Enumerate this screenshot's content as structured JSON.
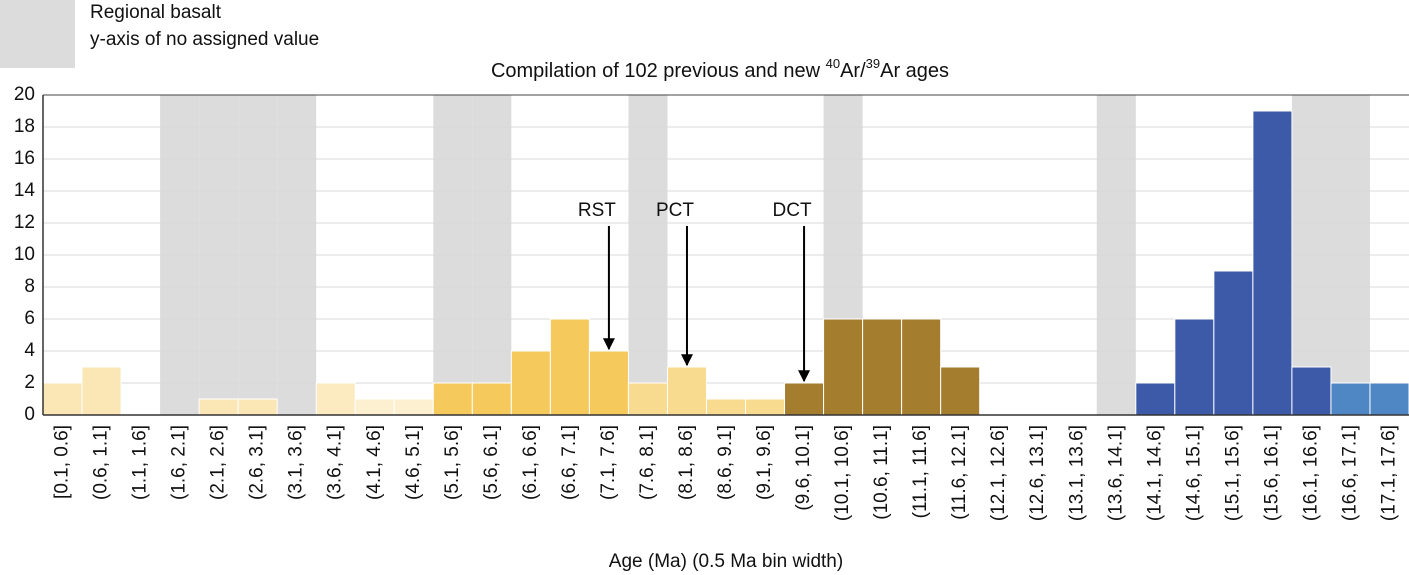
{
  "chart_data": {
    "type": "bar",
    "title": [
      "Compilation of 102 previous and new ",
      "40",
      "Ar/",
      "39",
      "Ar ages"
    ],
    "title_superscripts": [
      1,
      3
    ],
    "x_label": "Age (Ma) (0.5 Ma bin width)",
    "legend": [
      "Regional basalt",
      "y-axis of no assigned value"
    ],
    "shade_color": "#dcdcdc",
    "shaded_categories": [
      3,
      4,
      5,
      6,
      10,
      11,
      15,
      20,
      27,
      32,
      33
    ],
    "categories": [
      "[0.1, 0.6]",
      "(0.6, 1.1]",
      "(1.1, 1.6]",
      "(1.6, 2.1]",
      "(2.1, 2.6]",
      "(2.6, 3.1]",
      "(3.1, 3.6]",
      "(3.6, 4.1]",
      "(4.1, 4.6]",
      "(4.6, 5.1]",
      "(5.1, 5.6]",
      "(5.6, 6.1]",
      "(6.1, 6.6]",
      "(6.6, 7.1]",
      "(7.1, 7.6]",
      "(7.6, 8.1]",
      "(8.1, 8.6]",
      "(8.6, 9.1]",
      "(9.1, 9.6]",
      "(9.6, 10.1]",
      "(10.1, 10.6]",
      "(10.6, 11.1]",
      "(11.1, 11.6]",
      "(11.6, 12.1]",
      "(12.1, 12.6]",
      "(12.6, 13.1]",
      "(13.1, 13.6]",
      "(13.6, 14.1]",
      "(14.1, 14.6]",
      "(14.6, 15.1]",
      "(15.1, 15.6]",
      "(15.6, 16.1]",
      "(16.1, 16.6]",
      "(16.6, 17.1]",
      "(17.1, 17.6]"
    ],
    "values": [
      2,
      3,
      0,
      0,
      1,
      1,
      0,
      2,
      1,
      1,
      2,
      2,
      4,
      6,
      4,
      2,
      3,
      1,
      1,
      2,
      6,
      6,
      6,
      3,
      0,
      0,
      0,
      0,
      2,
      6,
      9,
      19,
      3,
      2,
      2
    ],
    "colors": [
      "#fbe6b5",
      "#fbe6b5",
      "#fbe6b5",
      "#fbe6b5",
      "#fbe6b5",
      "#fbe6b5",
      "#fbe6b5",
      "#fcebc0",
      "#fdf0d0",
      "#fdf0d0",
      "#f5c95c",
      "#f5c95c",
      "#f5c95c",
      "#f5c95c",
      "#f5c95c",
      "#f8db8e",
      "#f8db8e",
      "#f8db8e",
      "#f8db8e",
      "#a57d2e",
      "#a57d2e",
      "#a57d2e",
      "#a57d2e",
      "#a57d2e",
      "#a57d2e",
      "#a57d2e",
      "#a57d2e",
      "#3c5aa8",
      "#3c5aa8",
      "#3c5aa8",
      "#3c5aa8",
      "#3c5aa8",
      "#3c5aa8",
      "#4f87c4",
      "#4f87c4"
    ],
    "annotations": [
      {
        "text": "RST",
        "category": 14
      },
      {
        "text": "PCT",
        "category": 16
      },
      {
        "text": "DCT",
        "category": 19
      }
    ],
    "ylim": [
      0,
      20
    ],
    "yticks": [
      0,
      2,
      4,
      6,
      8,
      10,
      12,
      14,
      16,
      18,
      20
    ],
    "grid": true
  }
}
